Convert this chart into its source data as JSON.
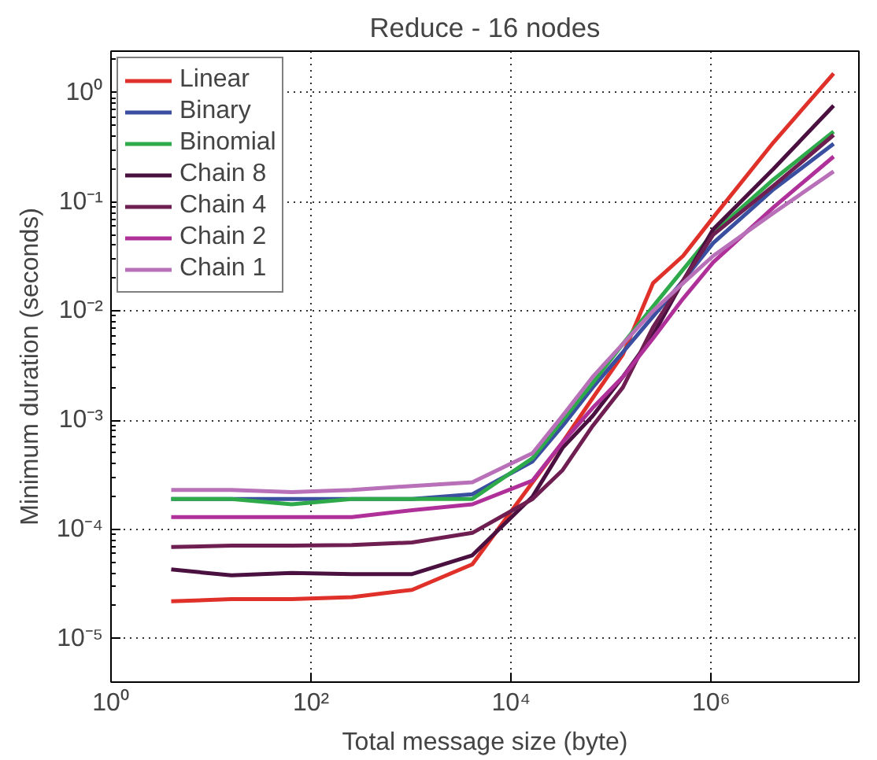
{
  "chart_data": {
    "type": "line",
    "title": "Reduce - 16 nodes",
    "xlabel": "Total message size (byte)",
    "ylabel": "Minimum duration (seconds)",
    "log": "xy",
    "grid": true,
    "legend": "top left",
    "line_style": "solid",
    "marker": "none",
    "xlim": [
      1,
      30000000
    ],
    "ylim": [
      4e-06,
      2.4
    ],
    "xticks": [
      {
        "value": 1,
        "label": "10⁰"
      },
      {
        "value": 100,
        "label": "10²"
      },
      {
        "value": 10000,
        "label": "10⁴"
      },
      {
        "value": 1000000,
        "label": "10⁶"
      }
    ],
    "yticks": [
      {
        "value": 1e-05,
        "label": "10⁻⁵"
      },
      {
        "value": 0.0001,
        "label": "10⁻⁴"
      },
      {
        "value": 0.001,
        "label": "10⁻³"
      },
      {
        "value": 0.01,
        "label": "10⁻²"
      },
      {
        "value": 0.1,
        "label": "10⁻¹"
      },
      {
        "value": 1,
        "label": "10⁰"
      }
    ],
    "x": [
      4,
      16,
      64,
      256,
      1024,
      4096,
      16384,
      32768,
      65536,
      131072,
      262144,
      524288,
      1048576,
      4194304,
      16777216
    ],
    "series": [
      {
        "name": "Linear",
        "color": "#e0302a",
        "values": [
          2.2e-05,
          2.3e-05,
          2.3e-05,
          2.4e-05,
          2.8e-05,
          4.8e-05,
          0.00027,
          0.00063,
          0.0016,
          0.004,
          0.018,
          0.032,
          0.072,
          0.35,
          1.5
        ]
      },
      {
        "name": "Binary",
        "color": "#3a4fa0",
        "values": [
          0.00019,
          0.00019,
          0.00019,
          0.00019,
          0.00019,
          0.00021,
          0.00042,
          0.00089,
          0.002,
          0.0042,
          0.0089,
          0.019,
          0.042,
          0.13,
          0.34
        ]
      },
      {
        "name": "Binomial",
        "color": "#2eaa4a",
        "values": [
          0.00019,
          0.00019,
          0.00017,
          0.00019,
          0.00019,
          0.00019,
          0.00045,
          0.001,
          0.0022,
          0.005,
          0.011,
          0.024,
          0.052,
          0.16,
          0.44
        ]
      },
      {
        "name": "Chain 8",
        "color": "#4a1040",
        "values": [
          4.3e-05,
          3.8e-05,
          4e-05,
          3.9e-05,
          3.9e-05,
          5.8e-05,
          0.0002,
          0.00056,
          0.0011,
          0.0025,
          0.006,
          0.019,
          0.056,
          0.2,
          0.76
        ]
      },
      {
        "name": "Chain 4",
        "color": "#6e1e50",
        "values": [
          6.9e-05,
          7.1e-05,
          7.1e-05,
          7.2e-05,
          7.6e-05,
          9.3e-05,
          0.00019,
          0.00035,
          0.00089,
          0.002,
          0.0071,
          0.019,
          0.05,
          0.14,
          0.41
        ]
      },
      {
        "name": "Chain 2",
        "color": "#b0309a",
        "values": [
          0.00013,
          0.00013,
          0.00013,
          0.00013,
          0.00015,
          0.00017,
          0.00028,
          0.00063,
          0.0013,
          0.0025,
          0.0056,
          0.013,
          0.028,
          0.089,
          0.26
        ]
      },
      {
        "name": "Chain 1",
        "color": "#b870b8",
        "values": [
          0.00023,
          0.00023,
          0.00022,
          0.00023,
          0.00025,
          0.00027,
          0.0005,
          0.0011,
          0.0025,
          0.005,
          0.01,
          0.018,
          0.032,
          0.079,
          0.19
        ]
      }
    ]
  }
}
